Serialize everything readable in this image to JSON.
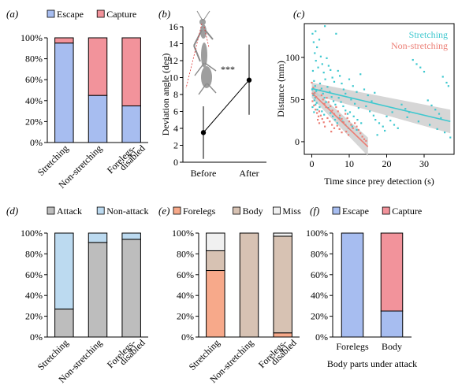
{
  "colors": {
    "escape": "#a7bdf0",
    "capture": "#f2939b",
    "attack": "#bdbdbd",
    "non_attack": "#bcdaf0",
    "forelegs": "#f7a98a",
    "body": "#d7c2b3",
    "miss": "#f0f0f0",
    "stretching": "#3ec8cf",
    "non_stretching": "#ec7f76",
    "ci_band": "#c8c8c8"
  },
  "panels": {
    "a": "(a)",
    "b": "(b)",
    "c": "(c)",
    "d": "(d)",
    "e": "(e)",
    "f": "(f)"
  },
  "chart_data": [
    {
      "panel": "a",
      "type": "bar",
      "stacked": true,
      "categories": [
        "Stretching",
        "Non-stretching",
        "Forelegs-\ndisabled"
      ],
      "series": [
        {
          "name": "Escape",
          "values": [
            95,
            45,
            35
          ]
        },
        {
          "name": "Capture",
          "values": [
            5,
            55,
            65
          ]
        }
      ],
      "y_ticks": [
        "0%",
        "20%",
        "40%",
        "60%",
        "80%",
        "100%"
      ],
      "ylim": [
        0,
        100
      ],
      "legend": "top"
    },
    {
      "panel": "b",
      "type": "scatter",
      "categories": [
        "Before",
        "After"
      ],
      "values": [
        3.5,
        9.7
      ],
      "err_low": [
        0.4,
        5.6
      ],
      "err_high": [
        6.6,
        13.9
      ],
      "ylabel": "Deviation angle (deg)",
      "ylim": [
        0,
        16
      ],
      "y_ticks": [
        "0",
        "2",
        "4",
        "6",
        "8",
        "10",
        "12",
        "14",
        "16"
      ],
      "annotation": "***"
    },
    {
      "panel": "c",
      "type": "scatter",
      "xlabel": "Time since prey detection (s)",
      "ylabel": "Distance (mm)",
      "xlim": [
        -2,
        38
      ],
      "ylim": [
        -15,
        140
      ],
      "x_ticks": [
        "0",
        "10",
        "20",
        "30"
      ],
      "y_ticks": [
        "0",
        "50",
        "100"
      ],
      "series": [
        {
          "name": "Stretching",
          "fit": [
            [
              0,
              63
            ],
            [
              37,
              24
            ]
          ],
          "points": [
            [
              0.2,
              128
            ],
            [
              0.5,
              118
            ],
            [
              0.8,
              105
            ],
            [
              1.1,
              96
            ],
            [
              1.4,
              112
            ],
            [
              1.7,
              88
            ],
            [
              0.3,
              84
            ],
            [
              0.6,
              72
            ],
            [
              0.9,
              66
            ],
            [
              1.2,
              60
            ],
            [
              0.4,
              55
            ],
            [
              0.7,
              49
            ],
            [
              1.0,
              44
            ],
            [
              1.5,
              38
            ],
            [
              2.0,
              121
            ],
            [
              2.4,
              101
            ],
            [
              2.8,
              92
            ],
            [
              3.2,
              82
            ],
            [
              3.6,
              74
            ],
            [
              2.2,
              69
            ],
            [
              2.6,
              63
            ],
            [
              3.0,
              57
            ],
            [
              3.4,
              52
            ],
            [
              3.8,
              47
            ],
            [
              2.1,
              41
            ],
            [
              2.7,
              36
            ],
            [
              3.3,
              32
            ],
            [
              4.0,
              99
            ],
            [
              4.5,
              90
            ],
            [
              5.0,
              85
            ],
            [
              5.5,
              76
            ],
            [
              6.0,
              71
            ],
            [
              4.2,
              65
            ],
            [
              4.8,
              59
            ],
            [
              5.3,
              53
            ],
            [
              5.8,
              48
            ],
            [
              6.3,
              44
            ],
            [
              4.4,
              40
            ],
            [
              5.0,
              34
            ],
            [
              5.6,
              30
            ],
            [
              6.2,
              26
            ],
            [
              6.8,
              22
            ],
            [
              7.0,
              84
            ],
            [
              7.5,
              78
            ],
            [
              8.0,
              69
            ],
            [
              8.5,
              62
            ],
            [
              9.0,
              57
            ],
            [
              7.2,
              52
            ],
            [
              7.8,
              47
            ],
            [
              8.4,
              42
            ],
            [
              9.0,
              37
            ],
            [
              9.6,
              33
            ],
            [
              7.4,
              28
            ],
            [
              8.2,
              24
            ],
            [
              9.0,
              20
            ],
            [
              9.8,
              16
            ],
            [
              10.0,
              74
            ],
            [
              11.0,
              66
            ],
            [
              12.0,
              59
            ],
            [
              10.5,
              50
            ],
            [
              11.5,
              45
            ],
            [
              12.5,
              40
            ],
            [
              10.2,
              35
            ],
            [
              11.2,
              30
            ],
            [
              12.2,
              26
            ],
            [
              13.2,
              22
            ],
            [
              10.8,
              18
            ],
            [
              12.0,
              14
            ],
            [
              14.0,
              62
            ],
            [
              15.0,
              55
            ],
            [
              16.0,
              48
            ],
            [
              14.5,
              42
            ],
            [
              15.5,
              36
            ],
            [
              16.5,
              31
            ],
            [
              17.0,
              26
            ],
            [
              18.0,
              22
            ],
            [
              19.0,
              18
            ],
            [
              19.5,
              13
            ],
            [
              20.0,
              30
            ],
            [
              21.0,
              25
            ],
            [
              17.5,
              8
            ],
            [
              22.0,
              20
            ],
            [
              23.0,
              16
            ],
            [
              24.0,
              44
            ],
            [
              25.0,
              39
            ],
            [
              26.0,
              35
            ],
            [
              27.0,
              97
            ],
            [
              28.0,
              92
            ],
            [
              29.0,
              88
            ],
            [
              30.0,
              83
            ],
            [
              31.0,
              49
            ],
            [
              32.0,
              43
            ],
            [
              33.0,
              38
            ],
            [
              34.0,
              33
            ],
            [
              34.5,
              28
            ],
            [
              35.0,
              77
            ],
            [
              35.5,
              11
            ],
            [
              36.0,
              70
            ],
            [
              36.5,
              66
            ],
            [
              37.0,
              5
            ],
            [
              25.5,
              29
            ],
            [
              28.5,
              24
            ],
            [
              31.5,
              20
            ],
            [
              33.5,
              15
            ],
            [
              6.5,
              128
            ],
            [
              3.5,
              137
            ],
            [
              1.0,
              131
            ],
            [
              13.0,
              80
            ],
            [
              16.8,
              58
            ],
            [
              21.5,
              35
            ],
            [
              0.1,
              62
            ],
            [
              0.5,
              57
            ],
            [
              0.9,
              52
            ],
            [
              1.3,
              46
            ],
            [
              0.2,
              41
            ],
            [
              0.6,
              35
            ]
          ]
        },
        {
          "name": "Non-stretching",
          "fit": [
            [
              0,
              58
            ],
            [
              15,
              -6
            ]
          ],
          "points": [
            [
              0.0,
              70
            ],
            [
              0.4,
              64
            ],
            [
              0.8,
              58
            ],
            [
              1.2,
              53
            ],
            [
              0.2,
              48
            ],
            [
              0.6,
              43
            ],
            [
              1.0,
              38
            ],
            [
              1.4,
              34
            ],
            [
              1.8,
              30
            ],
            [
              2.2,
              61
            ],
            [
              2.6,
              55
            ],
            [
              3.0,
              50
            ],
            [
              3.4,
              45
            ],
            [
              3.8,
              41
            ],
            [
              2.0,
              36
            ],
            [
              2.4,
              31
            ],
            [
              2.8,
              27
            ],
            [
              3.2,
              23
            ],
            [
              4.0,
              52
            ],
            [
              4.5,
              47
            ],
            [
              5.0,
              42
            ],
            [
              5.5,
              37
            ],
            [
              6.0,
              33
            ],
            [
              4.2,
              28
            ],
            [
              4.8,
              24
            ],
            [
              5.4,
              20
            ],
            [
              6.0,
              16
            ],
            [
              6.5,
              41
            ],
            [
              7.0,
              36
            ],
            [
              7.5,
              31
            ],
            [
              8.0,
              27
            ],
            [
              8.5,
              23
            ],
            [
              6.8,
              19
            ],
            [
              7.4,
              15
            ],
            [
              8.0,
              11
            ],
            [
              9.0,
              33
            ],
            [
              9.5,
              28
            ],
            [
              10.0,
              24
            ],
            [
              10.5,
              20
            ],
            [
              11.0,
              16
            ],
            [
              9.2,
              12
            ],
            [
              9.8,
              8
            ],
            [
              11.5,
              22
            ],
            [
              12.0,
              18
            ],
            [
              12.5,
              14
            ],
            [
              13.0,
              10
            ],
            [
              13.5,
              6
            ],
            [
              14.0,
              3
            ],
            [
              14.5,
              1
            ],
            [
              1.6,
              26
            ],
            [
              2.0,
              22
            ],
            [
              3.5,
              18
            ],
            [
              5.2,
              12
            ]
          ]
        }
      ],
      "legend": [
        "Stretching",
        "Non-stretching"
      ]
    },
    {
      "panel": "d",
      "type": "bar",
      "stacked": true,
      "categories": [
        "Stretching",
        "Non-stretching",
        "Forelegs-\ndisabled"
      ],
      "series": [
        {
          "name": "Attack",
          "values": [
            27,
            91,
            94
          ]
        },
        {
          "name": "Non-attack",
          "values": [
            73,
            9,
            6
          ]
        }
      ],
      "y_ticks": [
        "0%",
        "20%",
        "40%",
        "60%",
        "80%",
        "100%"
      ],
      "ylim": [
        0,
        100
      ],
      "legend": "top"
    },
    {
      "panel": "e",
      "type": "bar",
      "stacked": true,
      "categories": [
        "Stretching",
        "Non-stretching",
        "Forelegs-\ndisabled"
      ],
      "series": [
        {
          "name": "Forelegs",
          "values": [
            64,
            0,
            4
          ]
        },
        {
          "name": "Body",
          "values": [
            19,
            100,
            93
          ]
        },
        {
          "name": "Miss",
          "values": [
            17,
            0,
            3
          ]
        }
      ],
      "y_ticks": [
        "0%",
        "20%",
        "40%",
        "60%",
        "80%",
        "100%"
      ],
      "ylim": [
        0,
        100
      ],
      "legend": "top"
    },
    {
      "panel": "f",
      "type": "bar",
      "stacked": true,
      "categories": [
        "Forelegs",
        "Body"
      ],
      "series": [
        {
          "name": "Escape",
          "values": [
            100,
            25
          ]
        },
        {
          "name": "Capture",
          "values": [
            0,
            75
          ]
        }
      ],
      "y_ticks": [
        "0%",
        "20%",
        "40%",
        "60%",
        "80%",
        "100%"
      ],
      "ylim": [
        0,
        100
      ],
      "xlabel": "Body parts under attack",
      "legend": "top"
    }
  ]
}
